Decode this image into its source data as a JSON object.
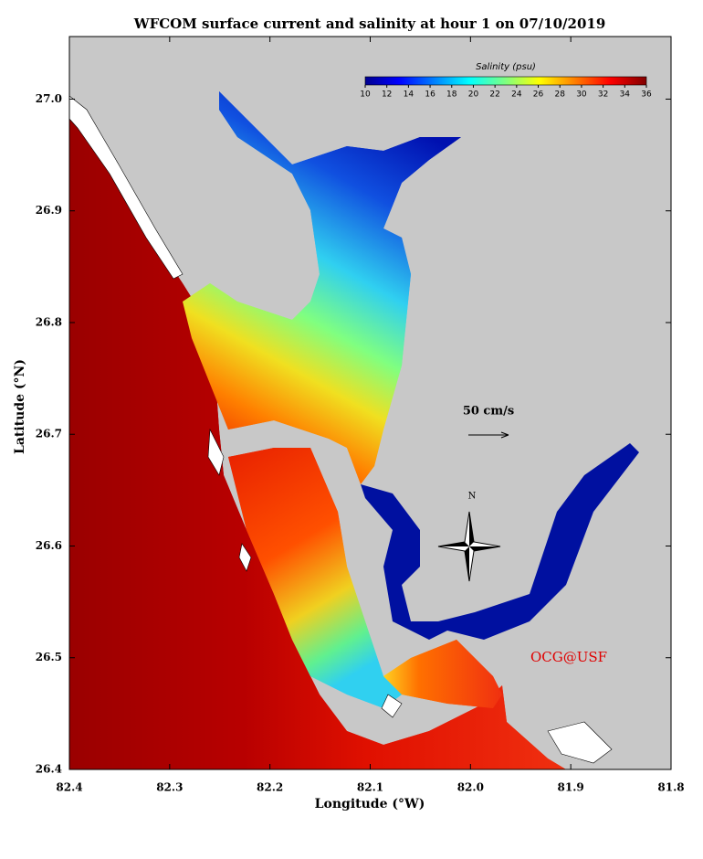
{
  "title": "WFCOM surface current and salinity at hour 1 on 07/10/2019",
  "map": {
    "x_label": "Longitude (°W)",
    "y_label": "Latitude (°N)",
    "xlim": [
      82.4,
      81.8
    ],
    "ylim": [
      26.4,
      27.056
    ],
    "xticks": [
      82.4,
      82.3,
      82.2,
      82.1,
      {
        "value": 82,
        "label": "82.0"
      },
      81.9,
      81.8
    ],
    "yticks": [
      26.4,
      26.5,
      26.6,
      26.7,
      26.8,
      26.9,
      {
        "value": 27,
        "label": "27.0"
      }
    ]
  },
  "colorbar": {
    "title": "Salinity (psu)",
    "lim": [
      10,
      36
    ],
    "ticks": [
      10,
      12,
      14,
      16,
      18,
      20,
      22,
      24,
      26,
      28,
      30,
      32,
      34,
      36
    ]
  },
  "annotations": {
    "scale_label": "50 cm/s",
    "north": "N",
    "credit": "OCG@USF"
  }
}
